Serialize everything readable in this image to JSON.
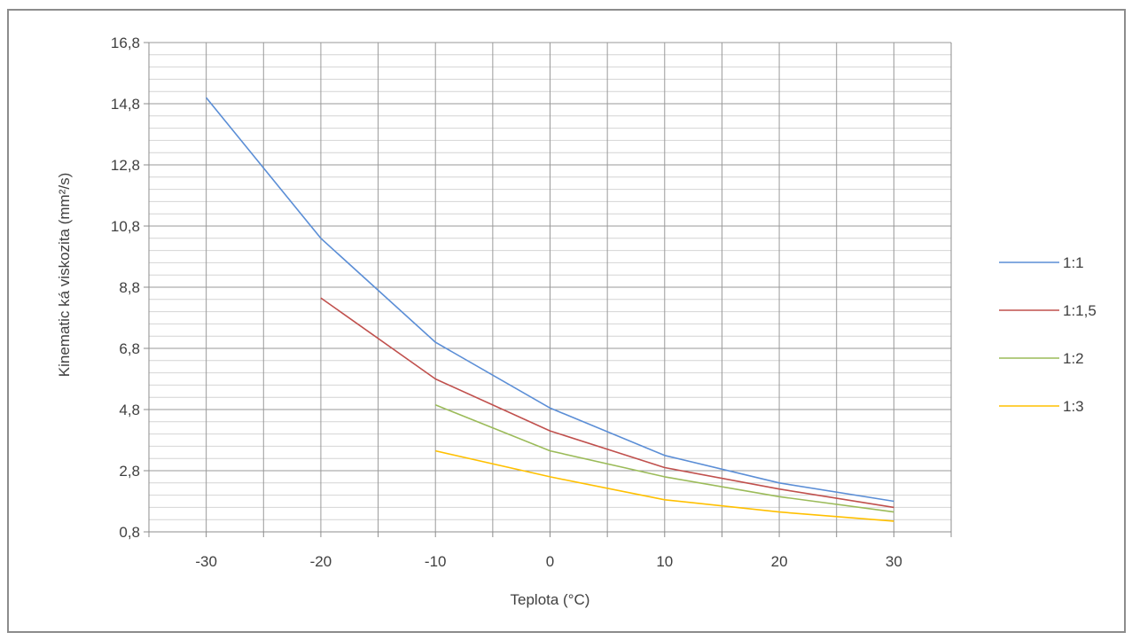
{
  "chart_data": {
    "type": "line",
    "title": "",
    "xlabel": "Teplota (°C)",
    "ylabel": "Kinematic ká viskozita (mm²/s)",
    "xlim": [
      -35,
      35
    ],
    "ylim": [
      0.8,
      16.8
    ],
    "x_ticks": [
      -30,
      -20,
      -10,
      0,
      10,
      20,
      30
    ],
    "x_tick_labels": [
      "-30",
      "-20",
      "-10",
      "0",
      "10",
      "20",
      "30"
    ],
    "y_ticks": [
      0.8,
      2.8,
      4.8,
      6.8,
      8.8,
      10.8,
      12.8,
      14.8,
      16.8
    ],
    "y_tick_labels": [
      "0,8",
      "2,8",
      "4,8",
      "6,8",
      "8,8",
      "10,8",
      "12,8",
      "14,8",
      "16,8"
    ],
    "x_major_grid_step": 5,
    "y_minor_grid_step": 0.4,
    "grid": true,
    "legend_position": "right",
    "series": [
      {
        "name": "1:1",
        "color": "#5b8ed6",
        "x": [
          -30,
          -20,
          -10,
          0,
          10,
          20,
          30
        ],
        "values": [
          15.0,
          10.4,
          7.0,
          4.85,
          3.3,
          2.4,
          1.8
        ]
      },
      {
        "name": "1:1,5",
        "color": "#c0504d",
        "x": [
          -20,
          -10,
          0,
          10,
          20,
          30
        ],
        "values": [
          8.45,
          5.8,
          4.1,
          2.9,
          2.2,
          1.6
        ]
      },
      {
        "name": "1:2",
        "color": "#9bbb59",
        "x": [
          -10,
          0,
          10,
          20,
          30
        ],
        "values": [
          4.95,
          3.45,
          2.6,
          1.95,
          1.45
        ]
      },
      {
        "name": "1:3",
        "color": "#ffc000",
        "x": [
          -10,
          0,
          10,
          20,
          30
        ],
        "values": [
          3.45,
          2.6,
          1.85,
          1.45,
          1.15
        ]
      }
    ]
  }
}
